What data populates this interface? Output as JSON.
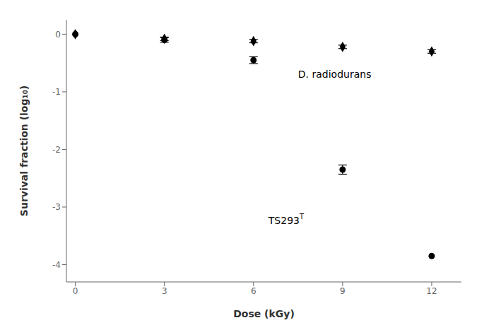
{
  "chart_data": {
    "type": "scatter",
    "xlabel": "Dose (kGy)",
    "ylabel": "Survival fraction (log₁₀)",
    "xlim": [
      -0.3,
      13
    ],
    "ylim": [
      -4.3,
      0.25
    ],
    "xticks": [
      0,
      3,
      6,
      9,
      12
    ],
    "yticks": [
      0,
      -1,
      -2,
      -3,
      -4
    ],
    "grid": false,
    "series": [
      {
        "color": "#000000",
        "marker": "diamond",
        "x": [
          0,
          3,
          6,
          9,
          12
        ],
        "values": [
          0,
          -0.08,
          -0.12,
          -0.22,
          -0.3
        ],
        "errors": [
          0.0,
          0.03,
          0.03,
          0.03,
          0.03
        ]
      },
      {
        "color": "#000000",
        "marker": "circle",
        "x": [
          0,
          3,
          6,
          9,
          12
        ],
        "values": [
          0,
          -0.1,
          -0.45,
          -2.35,
          -3.85
        ],
        "errors": [
          0.0,
          0.04,
          0.06,
          0.08,
          0.0
        ]
      }
    ],
    "annotations": [
      {
        "text": "D. radiodurans",
        "x": 7.5,
        "y": -0.75
      },
      {
        "text": "TS293",
        "superscript": "T",
        "x": 6.5,
        "y": -3.3
      }
    ]
  }
}
